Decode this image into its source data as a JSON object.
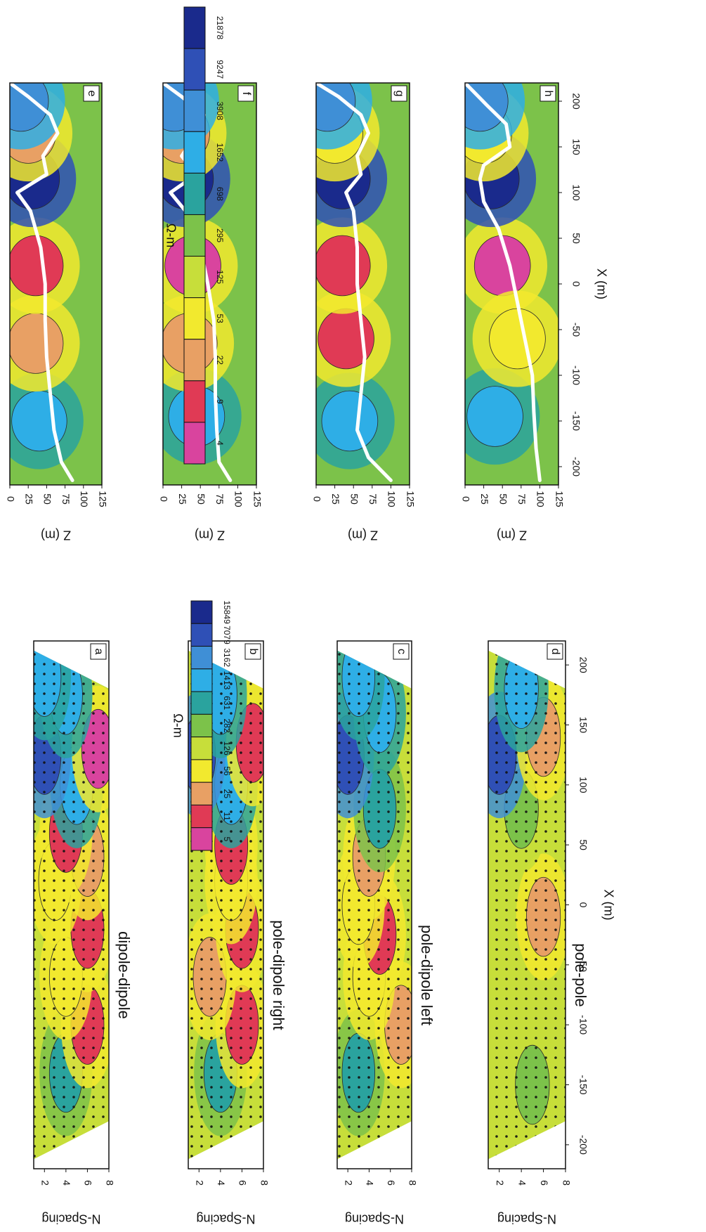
{
  "colors": {
    "page_bg": "#ffffff",
    "frame": "#111111",
    "contour": "#2a2a2a",
    "boundary_line": "#ffffff",
    "dots": "#111111"
  },
  "scale_palette": [
    "#1a2a8c",
    "#2f50b6",
    "#3f8fd6",
    "#2eaee6",
    "#2aa39e",
    "#7cc24a",
    "#c7de3a",
    "#f2e92e",
    "#e8a064",
    "#e03a55",
    "#d9449e"
  ],
  "legends": [
    {
      "id": "legend-pseudosection",
      "unit": "Ω-m",
      "values": [
        "15849",
        "7079",
        "3162",
        "1413",
        "631",
        "282",
        "126",
        "56",
        "25",
        "11",
        "5"
      ]
    },
    {
      "id": "legend-model",
      "unit": "Ω-m",
      "values": [
        "21878",
        "9247",
        "3908",
        "1652",
        "698",
        "295",
        "125",
        "53",
        "22",
        "9",
        "4"
      ]
    }
  ],
  "axes": {
    "x_label": "X (m)",
    "x_ticks": [
      "-200",
      "-150",
      "-100",
      "-50",
      "0",
      "50",
      "100",
      "150",
      "200"
    ],
    "n_label": "N-Spacing",
    "n_ticks": [
      "2",
      "4",
      "6",
      "8"
    ],
    "z_label": "Z (m)",
    "z_ticks": [
      "0",
      "25",
      "50",
      "75",
      "100",
      "125"
    ]
  },
  "chart_data": [
    {
      "type": "heatmap",
      "panel": "a",
      "title": "dipole-dipole",
      "x_range": [
        -220,
        220
      ],
      "y_range": [
        1,
        8
      ],
      "ylabel": "N-Spacing",
      "anomalies": [
        {
          "x": -140,
          "y": 4,
          "level": 4
        },
        {
          "x": -100,
          "y": 6,
          "level": 9
        },
        {
          "x": -60,
          "y": 4,
          "level": 7
        },
        {
          "x": -20,
          "y": 6,
          "level": 9
        },
        {
          "x": 20,
          "y": 3,
          "level": 7
        },
        {
          "x": 40,
          "y": 6,
          "level": 8
        },
        {
          "x": 60,
          "y": 4,
          "level": 9
        },
        {
          "x": 100,
          "y": 5,
          "level": 3
        },
        {
          "x": 125,
          "y": 2,
          "level": 1
        },
        {
          "x": 130,
          "y": 7,
          "level": 10
        },
        {
          "x": 175,
          "y": 4,
          "level": 3
        },
        {
          "x": 190,
          "y": 2,
          "level": 3
        }
      ]
    },
    {
      "type": "heatmap",
      "panel": "b",
      "title": "pole-dipole right",
      "x_range": [
        -220,
        220
      ],
      "y_range": [
        1,
        8
      ],
      "ylabel": "N-Spacing",
      "anomalies": [
        {
          "x": -140,
          "y": 4,
          "level": 4
        },
        {
          "x": -100,
          "y": 6,
          "level": 9
        },
        {
          "x": -60,
          "y": 3,
          "level": 8
        },
        {
          "x": -20,
          "y": 6,
          "level": 9
        },
        {
          "x": 20,
          "y": 5,
          "level": 7
        },
        {
          "x": 50,
          "y": 5,
          "level": 9
        },
        {
          "x": 100,
          "y": 5,
          "level": 3
        },
        {
          "x": 125,
          "y": 2,
          "level": 1
        },
        {
          "x": 135,
          "y": 7,
          "level": 9
        },
        {
          "x": 175,
          "y": 4,
          "level": 3
        }
      ]
    },
    {
      "type": "heatmap",
      "panel": "c",
      "title": "pole-dipole left",
      "x_range": [
        -220,
        220
      ],
      "y_range": [
        1,
        8
      ],
      "ylabel": "N-Spacing",
      "anomalies": [
        {
          "x": -140,
          "y": 3,
          "level": 4
        },
        {
          "x": -100,
          "y": 7,
          "level": 8
        },
        {
          "x": -60,
          "y": 4,
          "level": 7
        },
        {
          "x": -25,
          "y": 5,
          "level": 9
        },
        {
          "x": 0,
          "y": 3,
          "level": 7
        },
        {
          "x": 40,
          "y": 4,
          "level": 8
        },
        {
          "x": 80,
          "y": 5,
          "level": 4
        },
        {
          "x": 125,
          "y": 2,
          "level": 1
        },
        {
          "x": 160,
          "y": 5,
          "level": 3
        },
        {
          "x": 190,
          "y": 3,
          "level": 3
        }
      ]
    },
    {
      "type": "heatmap",
      "panel": "d",
      "title": "pole-pole",
      "x_range": [
        -220,
        220
      ],
      "y_range": [
        1,
        8
      ],
      "ylabel": "N-Spacing",
      "anomalies": [
        {
          "x": -150,
          "y": 5,
          "level": 5
        },
        {
          "x": -10,
          "y": 6,
          "level": 8
        },
        {
          "x": 80,
          "y": 4,
          "level": 5
        },
        {
          "x": 125,
          "y": 2,
          "level": 1
        },
        {
          "x": 140,
          "y": 6,
          "level": 8
        },
        {
          "x": 180,
          "y": 4,
          "level": 3
        }
      ]
    },
    {
      "type": "heatmap",
      "panel": "e",
      "x_range": [
        -220,
        220
      ],
      "y_range": [
        0,
        125
      ],
      "ylabel": "Z (m)",
      "anomalies": [
        {
          "x": -150,
          "y": 40,
          "level": 3
        },
        {
          "x": -65,
          "y": 35,
          "level": 8
        },
        {
          "x": 20,
          "y": 35,
          "level": 9
        },
        {
          "x": 115,
          "y": 30,
          "level": 0
        },
        {
          "x": 165,
          "y": 25,
          "level": 8
        },
        {
          "x": 200,
          "y": 15,
          "level": 2
        }
      ],
      "boundary": [
        [
          -215,
          85
        ],
        [
          -195,
          70
        ],
        [
          -160,
          60
        ],
        [
          -120,
          55
        ],
        [
          -80,
          50
        ],
        [
          -40,
          48
        ],
        [
          0,
          48
        ],
        [
          40,
          42
        ],
        [
          80,
          28
        ],
        [
          100,
          10
        ],
        [
          120,
          50
        ],
        [
          140,
          45
        ],
        [
          165,
          65
        ],
        [
          185,
          55
        ],
        [
          205,
          25
        ],
        [
          220,
          0
        ]
      ]
    },
    {
      "type": "heatmap",
      "panel": "f",
      "x_range": [
        -220,
        220
      ],
      "y_range": [
        0,
        125
      ],
      "ylabel": "Z (m)",
      "anomalies": [
        {
          "x": -145,
          "y": 45,
          "level": 3
        },
        {
          "x": -65,
          "y": 35,
          "level": 8
        },
        {
          "x": 20,
          "y": 40,
          "level": 10
        },
        {
          "x": 115,
          "y": 30,
          "level": 0
        },
        {
          "x": 165,
          "y": 25,
          "level": 8
        },
        {
          "x": 200,
          "y": 15,
          "level": 2
        }
      ],
      "boundary": [
        [
          -215,
          90
        ],
        [
          -195,
          75
        ],
        [
          -160,
          72
        ],
        [
          -120,
          70
        ],
        [
          -80,
          70
        ],
        [
          -40,
          68
        ],
        [
          0,
          60
        ],
        [
          40,
          50
        ],
        [
          80,
          30
        ],
        [
          100,
          10
        ],
        [
          120,
          45
        ],
        [
          140,
          25
        ],
        [
          165,
          45
        ],
        [
          185,
          55
        ],
        [
          205,
          25
        ],
        [
          220,
          0
        ]
      ]
    },
    {
      "type": "heatmap",
      "panel": "g",
      "x_range": [
        -220,
        220
      ],
      "y_range": [
        0,
        125
      ],
      "ylabel": "Z (m)",
      "anomalies": [
        {
          "x": -150,
          "y": 45,
          "level": 3
        },
        {
          "x": -60,
          "y": 40,
          "level": 9
        },
        {
          "x": 20,
          "y": 35,
          "level": 9
        },
        {
          "x": 115,
          "y": 35,
          "level": 0
        },
        {
          "x": 165,
          "y": 25,
          "level": 7
        },
        {
          "x": 200,
          "y": 15,
          "level": 2
        }
      ],
      "boundary": [
        [
          -215,
          100
        ],
        [
          -190,
          70
        ],
        [
          -160,
          55
        ],
        [
          -120,
          60
        ],
        [
          -80,
          65
        ],
        [
          -40,
          60
        ],
        [
          0,
          55
        ],
        [
          40,
          55
        ],
        [
          80,
          50
        ],
        [
          100,
          40
        ],
        [
          120,
          60
        ],
        [
          140,
          55
        ],
        [
          165,
          70
        ],
        [
          185,
          60
        ],
        [
          205,
          30
        ],
        [
          220,
          0
        ]
      ]
    },
    {
      "type": "heatmap",
      "panel": "h",
      "x_range": [
        -220,
        220
      ],
      "y_range": [
        0,
        125
      ],
      "ylabel": "Z (m)",
      "anomalies": [
        {
          "x": -145,
          "y": 40,
          "level": 3
        },
        {
          "x": 20,
          "y": 50,
          "level": 10
        },
        {
          "x": -60,
          "y": 70,
          "level": 7
        },
        {
          "x": 115,
          "y": 35,
          "level": 0
        },
        {
          "x": 165,
          "y": 25,
          "level": 7
        },
        {
          "x": 200,
          "y": 20,
          "level": 2
        }
      ],
      "boundary": [
        [
          -215,
          100
        ],
        [
          -180,
          95
        ],
        [
          -140,
          92
        ],
        [
          -100,
          90
        ],
        [
          -60,
          80
        ],
        [
          -20,
          70
        ],
        [
          20,
          60
        ],
        [
          60,
          45
        ],
        [
          90,
          25
        ],
        [
          115,
          20
        ],
        [
          130,
          25
        ],
        [
          150,
          60
        ],
        [
          175,
          55
        ],
        [
          195,
          30
        ],
        [
          220,
          0
        ]
      ]
    }
  ]
}
